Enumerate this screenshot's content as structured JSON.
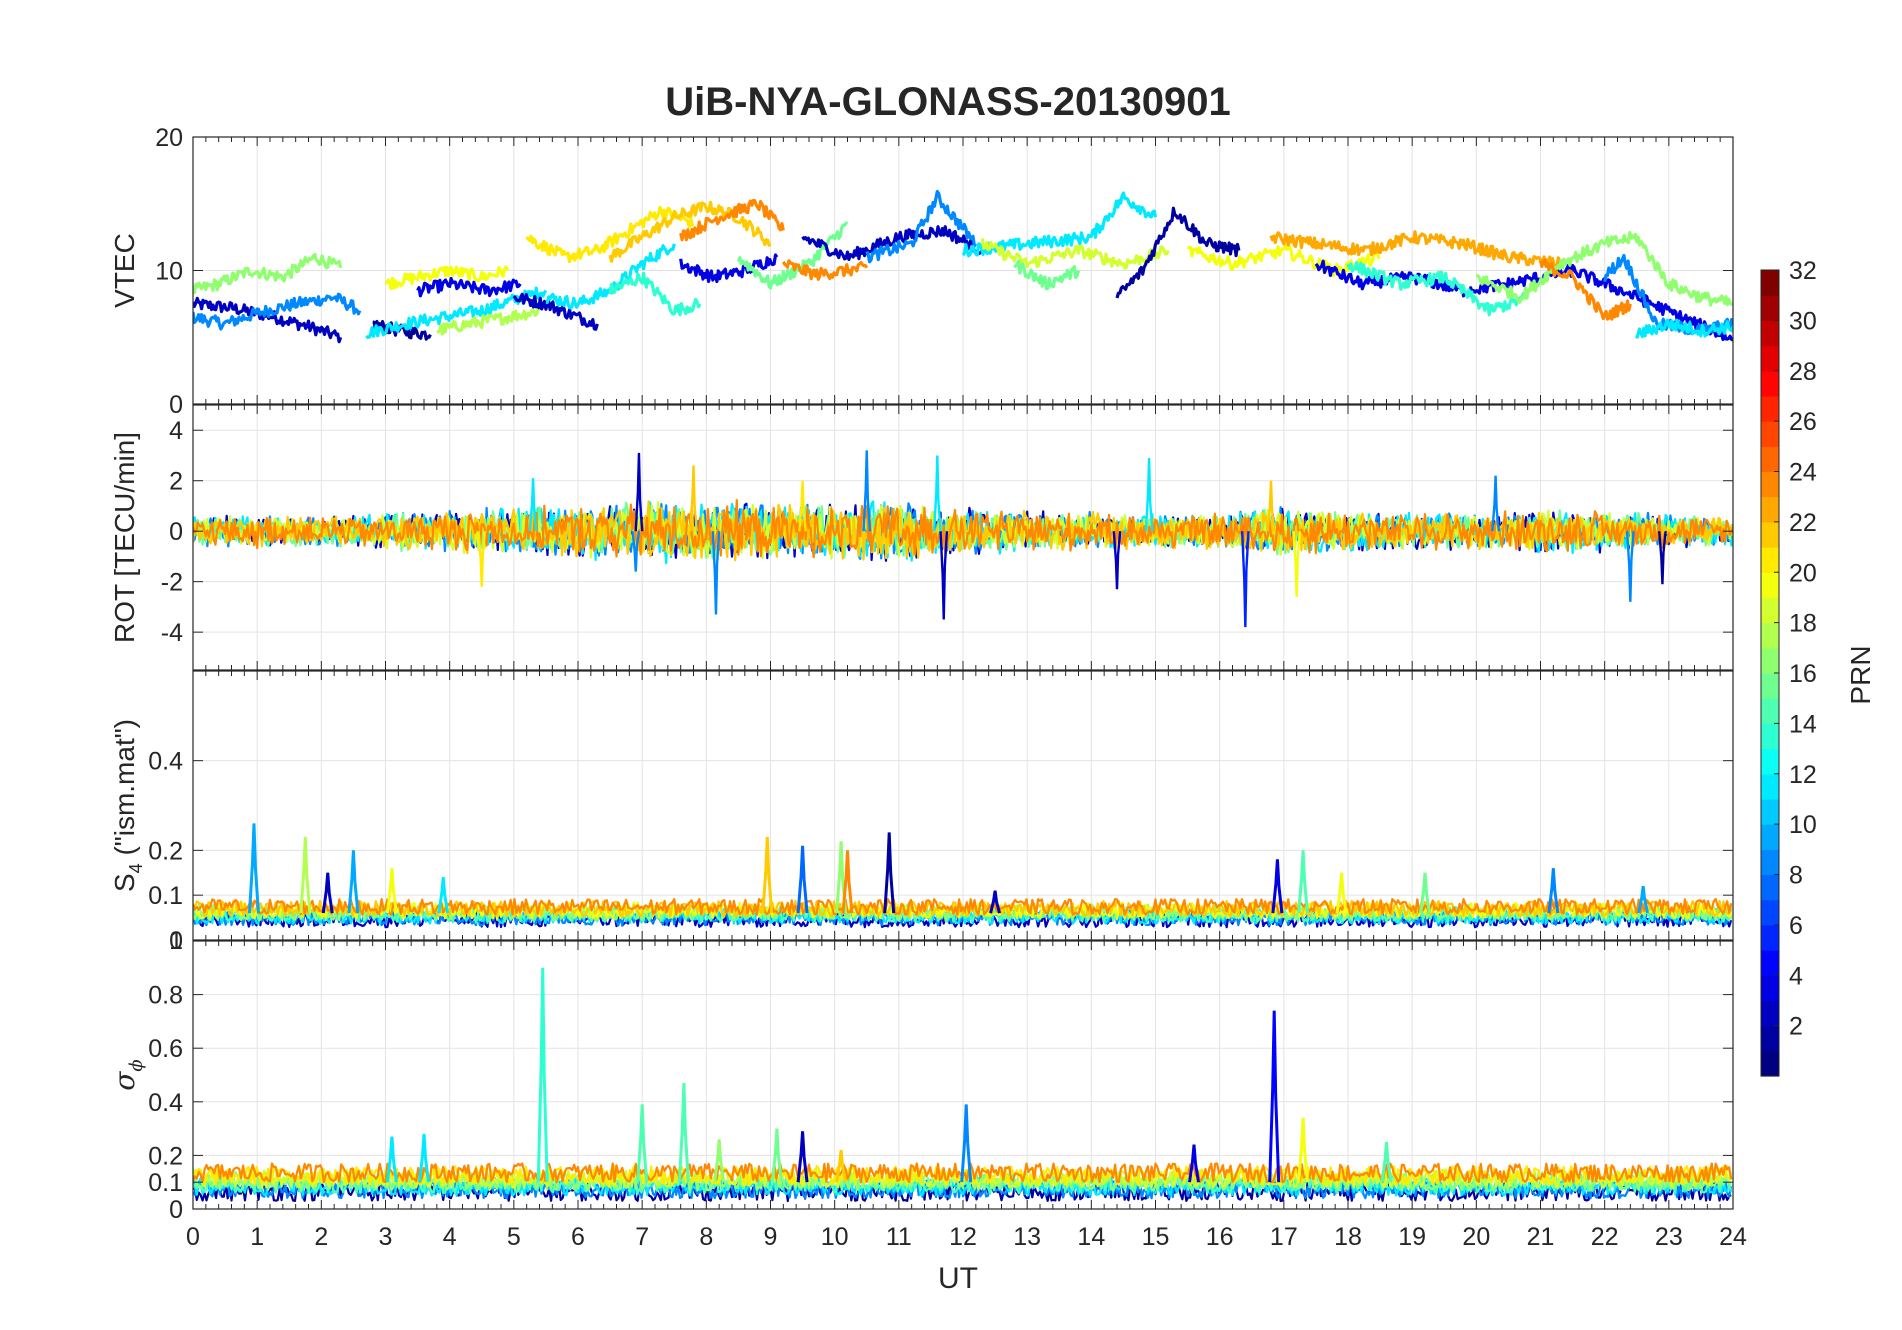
{
  "chart_data": {
    "type": "line",
    "title": "UiB-NYA-GLONASS-20130901",
    "xlabel": "UT",
    "xlim": [
      0,
      24
    ],
    "xticks": [
      "0",
      "1",
      "2",
      "3",
      "4",
      "5",
      "6",
      "7",
      "8",
      "9",
      "10",
      "11",
      "12",
      "13",
      "14",
      "15",
      "16",
      "17",
      "18",
      "19",
      "20",
      "21",
      "22",
      "23",
      "24"
    ],
    "color_by": "PRN",
    "colormap": "jet",
    "colorbar": {
      "label": "PRN",
      "range": [
        1,
        32
      ],
      "ticks": [
        "2",
        "4",
        "6",
        "8",
        "10",
        "12",
        "14",
        "16",
        "18",
        "20",
        "22",
        "24",
        "26",
        "28",
        "30",
        "32"
      ],
      "position": "right"
    },
    "grid": true,
    "panels": [
      {
        "id": "vtec",
        "ylabel": "VTEC",
        "ylim": [
          0,
          20
        ],
        "yticks": [
          0,
          10,
          20
        ],
        "yticklabels": [
          "0",
          "10",
          "20"
        ],
        "series": [
          {
            "prn": 3,
            "x": [
              0,
              0.6,
              1.2,
              1.8,
              2.3
            ],
            "y": [
              7.5,
              7.2,
              6.6,
              5.8,
              5.0
            ]
          },
          {
            "prn": 9,
            "x": [
              0,
              0.5,
              1.0,
              1.6,
              2.2,
              2.6
            ],
            "y": [
              6.5,
              6.0,
              6.8,
              7.5,
              8.0,
              7.0
            ]
          },
          {
            "prn": 17,
            "x": [
              0,
              0.4,
              0.9,
              1.4,
              1.9,
              2.3
            ],
            "y": [
              8.5,
              9.0,
              10.0,
              9.5,
              11.0,
              10.2
            ]
          },
          {
            "prn": 2,
            "x": [
              2.8,
              3.2,
              3.7
            ],
            "y": [
              6.0,
              5.5,
              5.2
            ]
          },
          {
            "prn": 12,
            "x": [
              2.7,
              3.3,
              3.9,
              4.5,
              5.0,
              5.5
            ],
            "y": [
              5.3,
              6.0,
              6.5,
              7.0,
              7.8,
              8.5
            ]
          },
          {
            "prn": 20,
            "x": [
              3.0,
              3.5,
              4.0,
              4.5,
              4.9
            ],
            "y": [
              9.0,
              9.5,
              10.0,
              9.5,
              10.0
            ]
          },
          {
            "prn": 4,
            "x": [
              3.5,
              4.0,
              4.6,
              5.1
            ],
            "y": [
              8.5,
              9.0,
              8.5,
              9.0
            ]
          },
          {
            "prn": 18,
            "x": [
              3.8,
              4.3,
              4.9,
              5.4
            ],
            "y": [
              5.5,
              6.0,
              6.5,
              7.0
            ]
          },
          {
            "prn": 3,
            "x": [
              5.0,
              5.5,
              6.0,
              6.3
            ],
            "y": [
              8.0,
              7.5,
              6.5,
              6.0
            ]
          },
          {
            "prn": 12,
            "x": [
              5.5,
              6.0,
              6.5,
              7.0,
              7.5
            ],
            "y": [
              8.0,
              7.5,
              8.5,
              10.5,
              12.0
            ]
          },
          {
            "prn": 21,
            "x": [
              5.2,
              5.8,
              6.3,
              6.8,
              7.3,
              7.8
            ],
            "y": [
              12.5,
              11.0,
              11.5,
              13.0,
              14.5,
              13.5
            ]
          },
          {
            "prn": 14,
            "x": [
              6.5,
              7.0,
              7.5,
              7.9
            ],
            "y": [
              8.5,
              9.5,
              7.0,
              7.5
            ]
          },
          {
            "prn": 22,
            "x": [
              6.5,
              7.0,
              7.5,
              8.0,
              8.5,
              9.0
            ],
            "y": [
              11.0,
              12.5,
              14.0,
              14.8,
              14.0,
              12.0
            ]
          },
          {
            "prn": 4,
            "x": [
              7.6,
              8.1,
              8.6,
              9.1
            ],
            "y": [
              10.5,
              9.5,
              10.0,
              11.0
            ]
          },
          {
            "prn": 24,
            "x": [
              7.6,
              8.2,
              8.8,
              9.2
            ],
            "y": [
              12.5,
              14.0,
              15.0,
              13.0
            ]
          },
          {
            "prn": 16,
            "x": [
              8.5,
              9.0,
              9.6,
              10.2
            ],
            "y": [
              11.0,
              9.0,
              10.5,
              13.5
            ]
          },
          {
            "prn": 24,
            "x": [
              9.2,
              9.7,
              10.5
            ],
            "y": [
              10.5,
              9.7,
              10.2
            ]
          },
          {
            "prn": 3,
            "x": [
              9.5,
              10.2,
              11.0,
              11.7,
              12.3
            ],
            "y": [
              12.5,
              11.0,
              12.5,
              13.0,
              11.5
            ]
          },
          {
            "prn": 9,
            "x": [
              10.5,
              11.2,
              11.6,
              12.2
            ],
            "y": [
              11.0,
              12.0,
              15.5,
              12.0
            ]
          },
          {
            "prn": 12,
            "x": [
              12.0,
              13.0,
              14.0,
              14.5,
              15.0
            ],
            "y": [
              11.5,
              12.0,
              12.5,
              15.5,
              14.0
            ]
          },
          {
            "prn": 19,
            "x": [
              12.3,
              13.0,
              13.8,
              14.5,
              15.2
            ],
            "y": [
              12.0,
              10.5,
              11.5,
              10.5,
              11.5
            ]
          },
          {
            "prn": 16,
            "x": [
              12.8,
              13.3,
              13.8
            ],
            "y": [
              10.5,
              9.0,
              10.0
            ]
          },
          {
            "prn": 2,
            "x": [
              14.4,
              14.8,
              15.3,
              15.8,
              16.3
            ],
            "y": [
              8.0,
              10.0,
              14.5,
              12.0,
              11.5
            ]
          },
          {
            "prn": 20,
            "x": [
              15.5,
              16.2,
              17.0,
              17.8,
              18.5
            ],
            "y": [
              11.5,
              10.5,
              11.5,
              10.0,
              11.0
            ]
          },
          {
            "prn": 23,
            "x": [
              16.8,
              17.5,
              18.3,
              19.0,
              19.8,
              20.5,
              21.3
            ],
            "y": [
              12.5,
              12.0,
              11.5,
              12.5,
              12.0,
              11.0,
              10.5
            ]
          },
          {
            "prn": 4,
            "x": [
              17.5,
              18.2,
              19.0,
              19.8,
              20.5,
              21.5,
              22.5,
              23.2,
              24.0
            ],
            "y": [
              10.5,
              9.0,
              9.5,
              8.5,
              9.0,
              10.0,
              8.0,
              6.5,
              4.8
            ]
          },
          {
            "prn": 14,
            "x": [
              18.0,
              18.8,
              19.5,
              20.2,
              20.8
            ],
            "y": [
              10.5,
              9.0,
              9.5,
              7.0,
              8.0
            ]
          },
          {
            "prn": 17,
            "x": [
              20.0,
              20.7,
              21.3,
              22.0,
              22.5,
              23.0,
              23.5,
              24.0
            ],
            "y": [
              9.5,
              8.0,
              10.5,
              12.0,
              12.5,
              9.0,
              8.0,
              7.5
            ]
          },
          {
            "prn": 24,
            "x": [
              21.0,
              21.5,
              22.0,
              22.4
            ],
            "y": [
              10.5,
              9.5,
              6.5,
              7.5
            ]
          },
          {
            "prn": 9,
            "x": [
              22.0,
              22.3,
              22.8,
              23.5,
              24.0
            ],
            "y": [
              9.5,
              11.0,
              6.0,
              5.5,
              6.0
            ]
          },
          {
            "prn": 12,
            "x": [
              22.5,
              23.0,
              23.5,
              24.0
            ],
            "y": [
              5.2,
              6.0,
              5.5,
              5.8
            ]
          }
        ]
      },
      {
        "id": "rot",
        "ylabel": "ROT [TECU/min]",
        "ylim": [
          -5.5,
          5
        ],
        "yticks": [
          -4,
          -2,
          0,
          2,
          4
        ],
        "yticklabels": [
          "-4",
          "-2",
          "0",
          "2",
          "4"
        ],
        "band_color_prns": [
          3,
          9,
          12,
          16,
          19,
          22,
          24
        ],
        "band_amplitude": [
          0.6,
          0.7,
          0.6,
          0.8,
          0.9,
          1.0,
          1.1,
          1.3,
          1.3,
          1.2,
          1.2,
          1.3,
          1.0,
          0.9,
          0.8,
          0.7,
          0.8,
          1.0,
          0.9,
          0.8,
          0.8,
          0.9,
          0.9,
          0.7,
          0.6
        ],
        "spikes": [
          {
            "x": 6.95,
            "y": 3.1,
            "prn": 3
          },
          {
            "x": 6.9,
            "y": -1.6,
            "prn": 9
          },
          {
            "x": 7.8,
            "y": 2.6,
            "prn": 22
          },
          {
            "x": 8.15,
            "y": -3.3,
            "prn": 9
          },
          {
            "x": 10.5,
            "y": 3.2,
            "prn": 9
          },
          {
            "x": 11.7,
            "y": -3.5,
            "prn": 3
          },
          {
            "x": 11.6,
            "y": 3.0,
            "prn": 12
          },
          {
            "x": 14.9,
            "y": 2.9,
            "prn": 12
          },
          {
            "x": 14.4,
            "y": -2.3,
            "prn": 3
          },
          {
            "x": 16.4,
            "y": -3.8,
            "prn": 6
          },
          {
            "x": 16.8,
            "y": 2.0,
            "prn": 22
          },
          {
            "x": 17.2,
            "y": -2.6,
            "prn": 20
          },
          {
            "x": 22.4,
            "y": -2.8,
            "prn": 9
          },
          {
            "x": 22.9,
            "y": -2.1,
            "prn": 2
          },
          {
            "x": 5.3,
            "y": 2.1,
            "prn": 12
          },
          {
            "x": 9.5,
            "y": 2.0,
            "prn": 21
          },
          {
            "x": 20.3,
            "y": 2.2,
            "prn": 9
          },
          {
            "x": 4.5,
            "y": -2.2,
            "prn": 21
          }
        ]
      },
      {
        "id": "s4",
        "ylabel_main": "S",
        "ylabel_sub": "4",
        "ylabel_rest": " (\"ism.mat\")",
        "ylim": [
          0,
          0.6
        ],
        "yticks": [
          0,
          0.1,
          0.2,
          0.4
        ],
        "yticklabels": [
          "0",
          "0.1",
          "0.2",
          "0.4"
        ],
        "top_label": "1",
        "baseline": 0.06,
        "spikes": [
          {
            "x": 0.95,
            "y": 0.26,
            "prn": 10
          },
          {
            "x": 1.75,
            "y": 0.23,
            "prn": 18
          },
          {
            "x": 2.1,
            "y": 0.15,
            "prn": 3
          },
          {
            "x": 2.5,
            "y": 0.2,
            "prn": 10
          },
          {
            "x": 3.1,
            "y": 0.16,
            "prn": 20
          },
          {
            "x": 3.9,
            "y": 0.14,
            "prn": 12
          },
          {
            "x": 8.95,
            "y": 0.23,
            "prn": 22
          },
          {
            "x": 9.5,
            "y": 0.21,
            "prn": 8
          },
          {
            "x": 10.1,
            "y": 0.22,
            "prn": 17
          },
          {
            "x": 10.2,
            "y": 0.2,
            "prn": 24
          },
          {
            "x": 10.85,
            "y": 0.24,
            "prn": 2
          },
          {
            "x": 12.5,
            "y": 0.11,
            "prn": 3
          },
          {
            "x": 16.9,
            "y": 0.18,
            "prn": 4
          },
          {
            "x": 17.3,
            "y": 0.2,
            "prn": 15
          },
          {
            "x": 17.9,
            "y": 0.15,
            "prn": 20
          },
          {
            "x": 19.2,
            "y": 0.15,
            "prn": 16
          },
          {
            "x": 21.2,
            "y": 0.16,
            "prn": 9
          },
          {
            "x": 22.6,
            "y": 0.12,
            "prn": 10
          }
        ]
      },
      {
        "id": "sigphi",
        "ylabel_main": "σ",
        "ylabel_sub": "ϕ",
        "ylim": [
          0,
          1
        ],
        "yticks": [
          0,
          0.1,
          0.2,
          0.4,
          0.6,
          0.8
        ],
        "yticklabels": [
          "0",
          "0.1",
          "0.2",
          "0.4",
          "0.6",
          "0.8"
        ],
        "baseline": 0.1,
        "spikes": [
          {
            "x": 5.45,
            "y": 0.9,
            "prn": 14
          },
          {
            "x": 16.85,
            "y": 0.74,
            "prn": 5
          },
          {
            "x": 7.65,
            "y": 0.47,
            "prn": 15
          },
          {
            "x": 7.0,
            "y": 0.39,
            "prn": 15
          },
          {
            "x": 12.05,
            "y": 0.39,
            "prn": 9
          },
          {
            "x": 17.3,
            "y": 0.34,
            "prn": 20
          },
          {
            "x": 3.1,
            "y": 0.27,
            "prn": 12
          },
          {
            "x": 3.6,
            "y": 0.28,
            "prn": 12
          },
          {
            "x": 9.1,
            "y": 0.3,
            "prn": 16
          },
          {
            "x": 9.5,
            "y": 0.29,
            "prn": 3
          },
          {
            "x": 15.6,
            "y": 0.24,
            "prn": 4
          },
          {
            "x": 18.6,
            "y": 0.25,
            "prn": 15
          },
          {
            "x": 8.2,
            "y": 0.26,
            "prn": 17
          },
          {
            "x": 10.1,
            "y": 0.22,
            "prn": 22
          }
        ]
      }
    ]
  }
}
